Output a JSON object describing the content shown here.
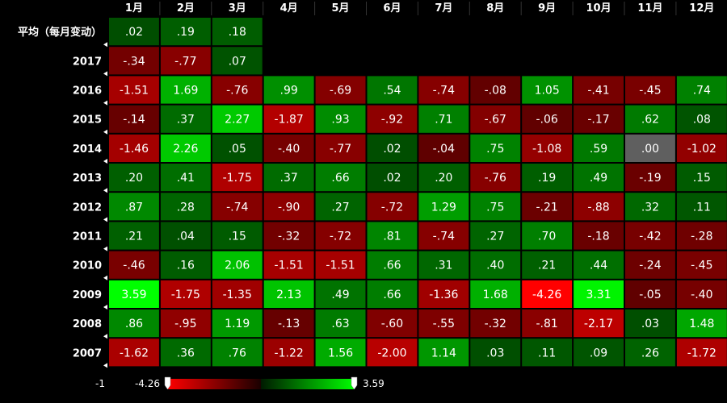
{
  "chart_data": {
    "type": "heatmap",
    "columns": [
      "1月",
      "2月",
      "3月",
      "4月",
      "5月",
      "6月",
      "7月",
      "8月",
      "9月",
      "10月",
      "11月",
      "12月"
    ],
    "rows": [
      {
        "label": "平均（每月变动）",
        "values": [
          ".02",
          ".19",
          ".18",
          null,
          null,
          null,
          null,
          null,
          null,
          null,
          null,
          null
        ]
      },
      {
        "label": "2017",
        "values": [
          "-.34",
          "-.77",
          ".07",
          null,
          null,
          null,
          null,
          null,
          null,
          null,
          null,
          null
        ]
      },
      {
        "label": "2016",
        "values": [
          "-1.51",
          "1.69",
          "-.76",
          ".99",
          "-.69",
          ".54",
          "-.74",
          "-.08",
          "1.05",
          "-.41",
          "-.45",
          ".74"
        ]
      },
      {
        "label": "2015",
        "values": [
          "-.14",
          ".37",
          "2.27",
          "-1.87",
          ".93",
          "-.92",
          ".71",
          "-.67",
          "-.06",
          "-.17",
          ".62",
          ".08"
        ]
      },
      {
        "label": "2014",
        "values": [
          "-1.46",
          "2.26",
          ".05",
          "-.40",
          "-.77",
          ".02",
          "-.04",
          ".75",
          "-1.08",
          ".59",
          ".00",
          "-1.02"
        ]
      },
      {
        "label": "2013",
        "values": [
          ".20",
          ".41",
          "-1.75",
          ".37",
          ".66",
          ".02",
          ".20",
          "-.76",
          ".19",
          ".49",
          "-.19",
          ".15"
        ]
      },
      {
        "label": "2012",
        "values": [
          ".87",
          ".28",
          "-.74",
          "-.90",
          ".27",
          "-.72",
          "1.29",
          ".75",
          "-.21",
          "-.88",
          ".32",
          ".11"
        ]
      },
      {
        "label": "2011",
        "values": [
          ".21",
          ".04",
          ".15",
          "-.32",
          "-.72",
          ".81",
          "-.74",
          ".27",
          ".70",
          "-.18",
          "-.42",
          "-.28"
        ]
      },
      {
        "label": "2010",
        "values": [
          "-.46",
          ".16",
          "2.06",
          "-1.51",
          "-1.51",
          ".66",
          ".31",
          ".40",
          ".21",
          ".44",
          "-.24",
          "-.45"
        ]
      },
      {
        "label": "2009",
        "values": [
          "3.59",
          "-1.75",
          "-1.35",
          "2.13",
          ".49",
          ".66",
          "-1.36",
          "1.68",
          "-4.26",
          "3.31",
          "-.05",
          "-.40"
        ]
      },
      {
        "label": "2008",
        "values": [
          ".86",
          "-.95",
          "1.19",
          "-.13",
          ".63",
          "-.60",
          "-.55",
          "-.32",
          "-.81",
          "-2.17",
          ".03",
          "1.48"
        ]
      },
      {
        "label": "2007",
        "values": [
          "-1.62",
          ".36",
          ".76",
          "-1.22",
          "1.56",
          "-2.00",
          "1.14",
          ".03",
          ".11",
          ".09",
          ".26",
          "-1.72"
        ]
      }
    ],
    "scale": {
      "min": -4.26,
      "max": 3.59,
      "min_label": "-4.26",
      "max_label": "3.59"
    },
    "colors": {
      "negative": "#ff0000",
      "negative_dark": "#5a0000",
      "positive_dark": "#004a00",
      "positive": "#00ff00",
      "zero": "#5f5f5f",
      "background": "#000000"
    }
  }
}
